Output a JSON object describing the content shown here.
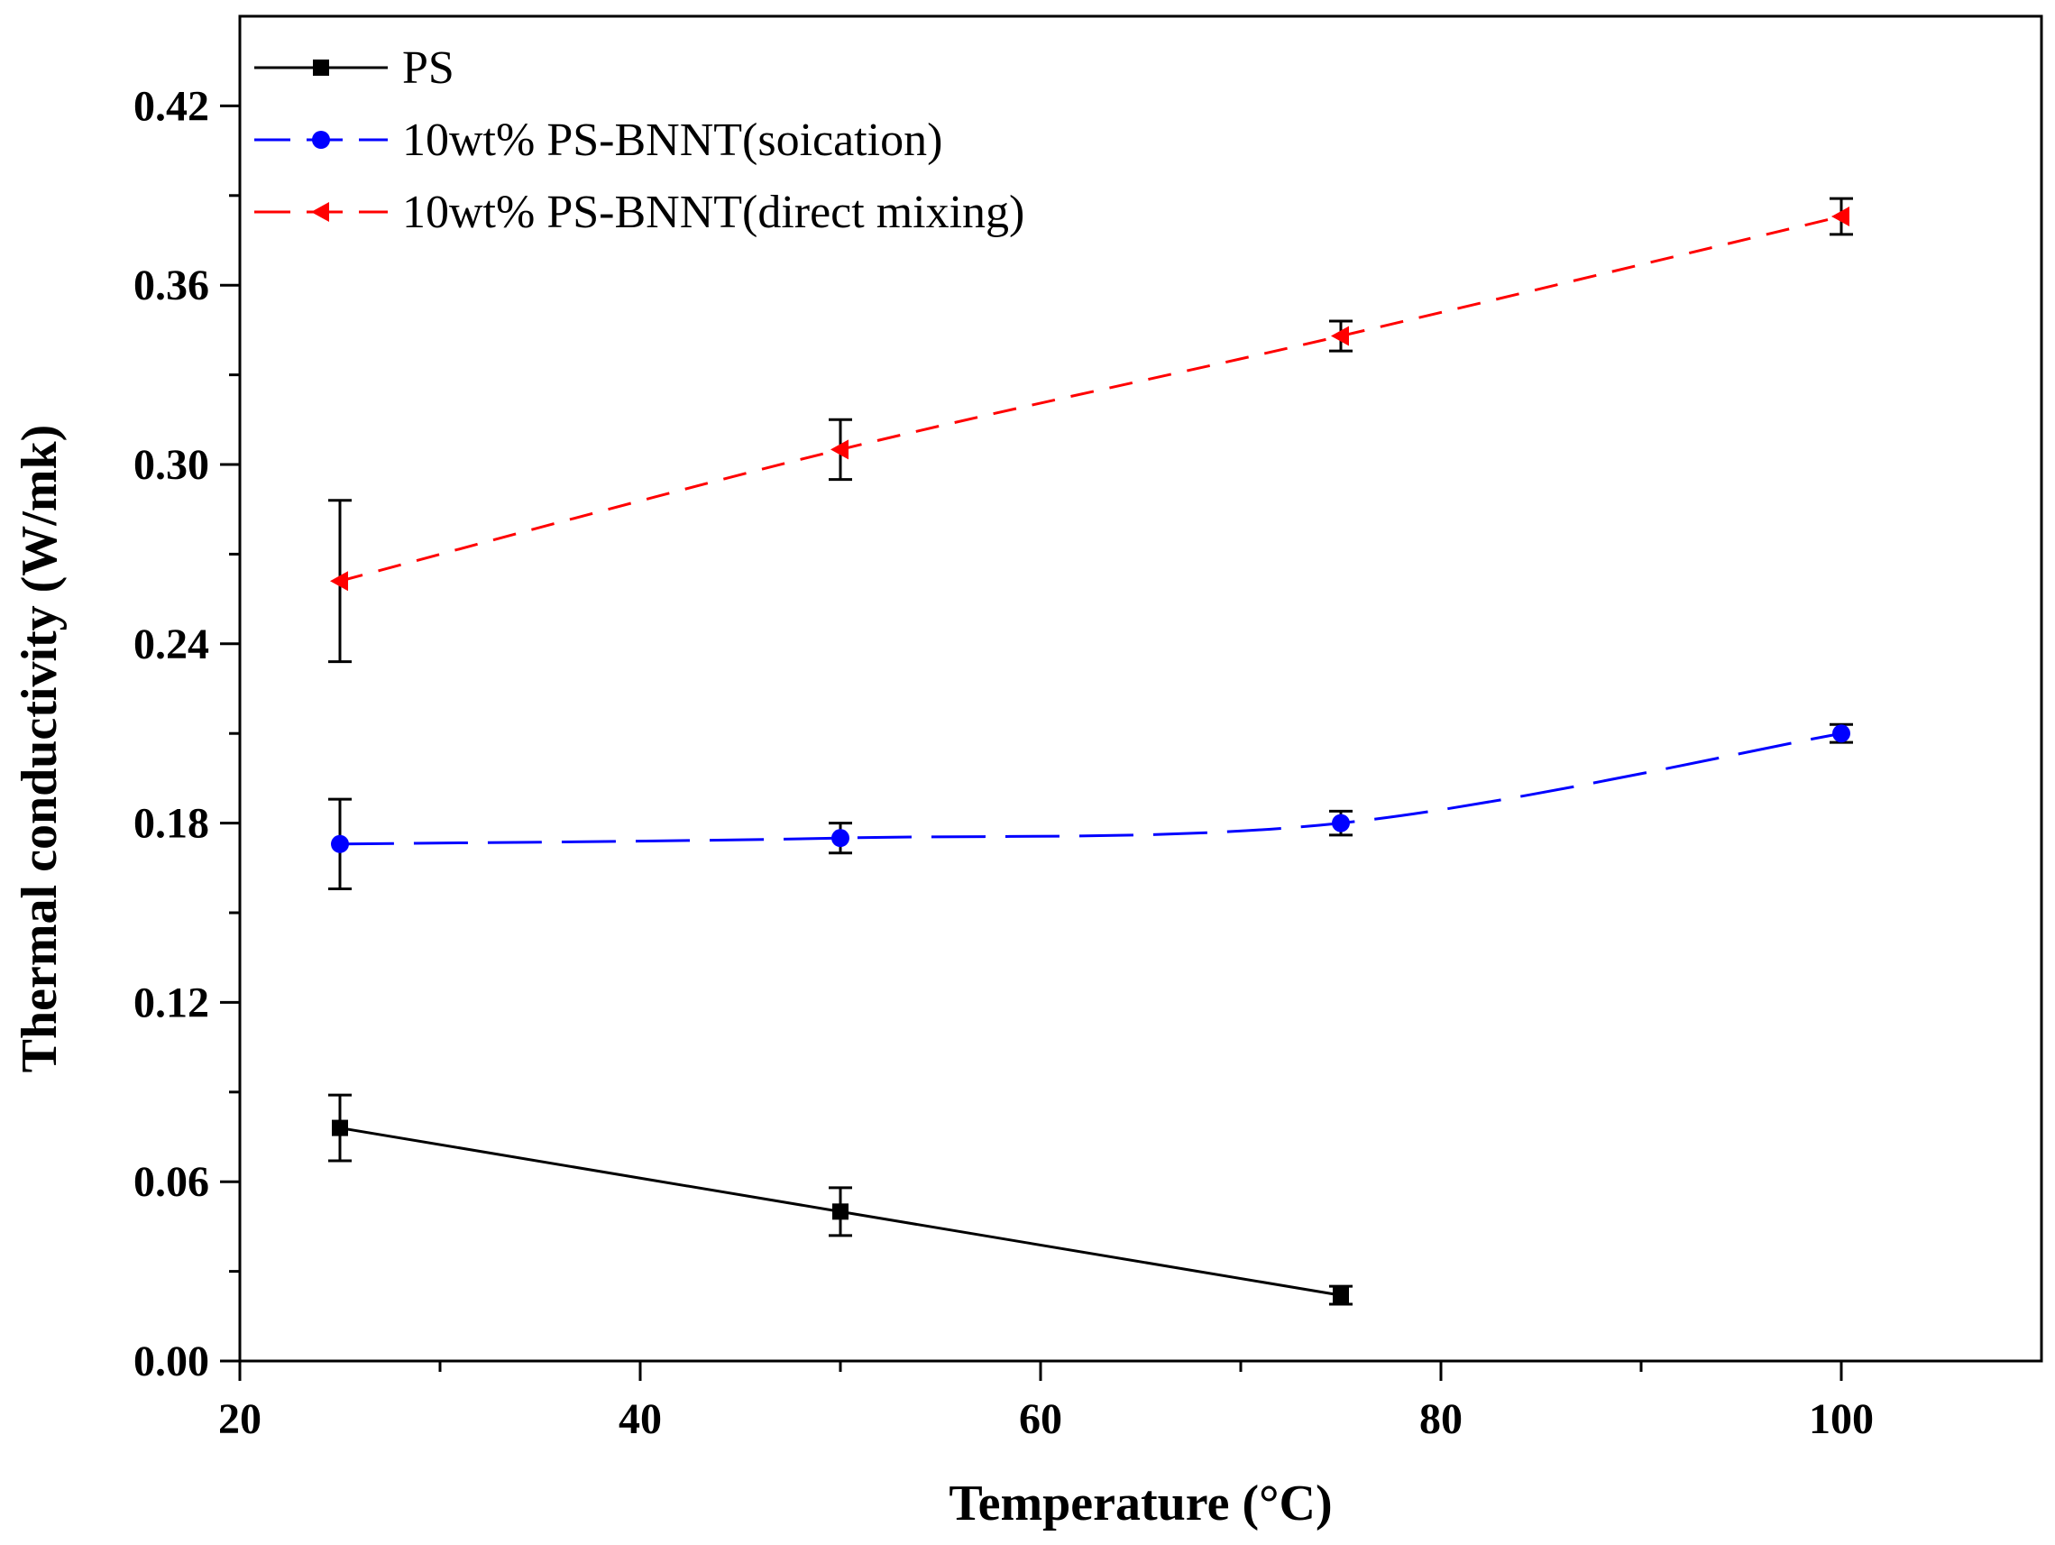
{
  "chart_data": {
    "type": "line",
    "title": "",
    "xlabel": "Temperature (°C)",
    "ylabel": "Thermal conductivity (W/mk)",
    "xlim": [
      20,
      110
    ],
    "ylim": [
      0,
      0.45
    ],
    "xticks": [
      20,
      40,
      60,
      80,
      100
    ],
    "xtick_labels": [
      "20",
      "40",
      "60",
      "80",
      "100"
    ],
    "yticks": [
      0.0,
      0.06,
      0.12,
      0.18,
      0.24,
      0.3,
      0.36,
      0.42
    ],
    "ytick_labels": [
      "0.00",
      "0.06",
      "0.12",
      "0.18",
      "0.24",
      "0.30",
      "0.36",
      "0.42"
    ],
    "legend_position": "top-left",
    "series": [
      {
        "name": "PS",
        "color": "#000000",
        "marker": "square",
        "dash": "solid",
        "x": [
          25,
          50,
          75
        ],
        "y": [
          0.078,
          0.05,
          0.022
        ],
        "yerr": [
          0.011,
          0.008,
          0.003
        ]
      },
      {
        "name": "10wt% PS-BNNT(soication)",
        "color": "#0000ff",
        "marker": "circle",
        "dash": "dashed",
        "x": [
          25,
          50,
          75,
          100
        ],
        "y": [
          0.173,
          0.175,
          0.18,
          0.21
        ],
        "yerr": [
          0.015,
          0.005,
          0.004,
          0.003
        ]
      },
      {
        "name": "10wt% PS-BNNT(direct mixing)",
        "color": "#ff0000",
        "marker": "triangle-left",
        "dash": "dashed",
        "x": [
          25,
          50,
          75,
          100
        ],
        "y": [
          0.261,
          0.305,
          0.343,
          0.383
        ],
        "yerr": [
          0.027,
          0.01,
          0.005,
          0.006
        ]
      }
    ]
  }
}
